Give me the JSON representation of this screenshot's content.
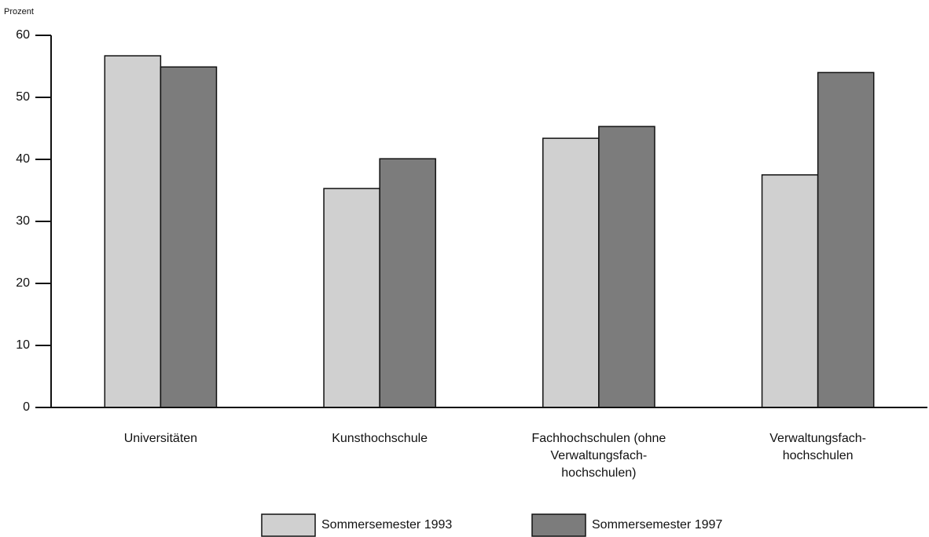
{
  "chart_data": {
    "type": "bar",
    "y_label": "Prozent",
    "categories": [
      "Universitäten",
      "Kunsthochschule",
      "Fachhochschulen (ohne\nVerwaltungsfach-\nhochschulen)",
      "Verwaltungsfach-\nhochschulen"
    ],
    "series": [
      {
        "name": "Sommersemester 1993",
        "color": "#d0d0d0",
        "values": [
          56.7,
          35.3,
          43.4,
          37.5
        ]
      },
      {
        "name": "Sommersemester 1997",
        "color": "#7c7c7c",
        "values": [
          54.9,
          40.1,
          45.3,
          54.0
        ]
      }
    ],
    "ylim": [
      0,
      60
    ],
    "yticks": [
      0,
      10,
      20,
      30,
      40,
      50,
      60
    ],
    "grid": false,
    "legend": "bottom"
  }
}
